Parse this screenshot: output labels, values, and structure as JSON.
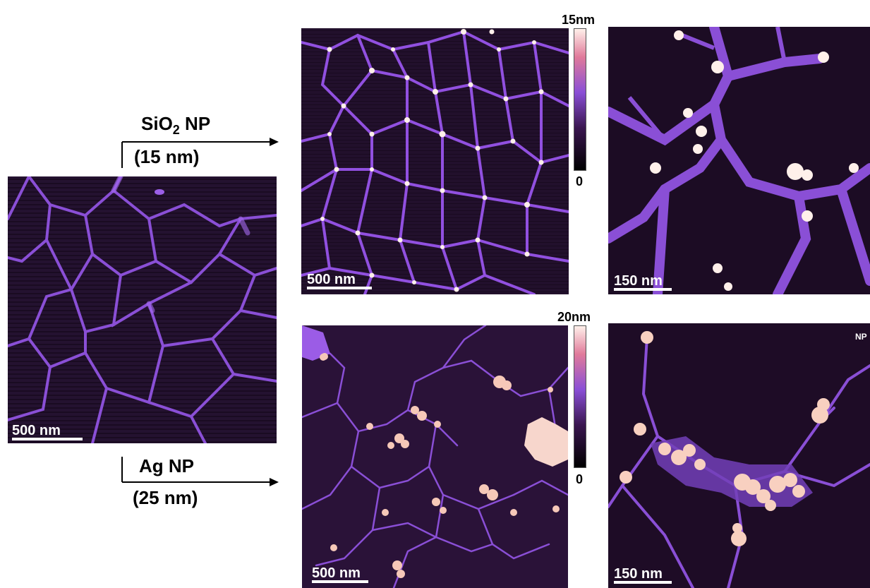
{
  "panels": {
    "original": {
      "scale": "500 nm"
    },
    "sio2_overview": {
      "scale": "500 nm"
    },
    "sio2_zoom": {
      "scale": "150 nm"
    },
    "ag_overview": {
      "scale": "500 nm"
    },
    "ag_zoom": {
      "scale": "150 nm",
      "tag": "NP"
    }
  },
  "arrows": {
    "top": {
      "line1_prefix": "SiO",
      "line1_sub": "2",
      "line1_suffix": " NP",
      "line2": "(15 nm)"
    },
    "bottom": {
      "line1": "Ag NP",
      "line2": "(25 nm)"
    }
  },
  "colorbars": {
    "top": {
      "max": "15nm",
      "min": "0"
    },
    "bottom": {
      "max": "20nm",
      "min": "0"
    }
  },
  "colors": {
    "background_dark": "#1c0c24",
    "network_strand": "#8a4fd6",
    "particle_bright": "#fff0ea",
    "particle_glow": "#f2a27a"
  }
}
